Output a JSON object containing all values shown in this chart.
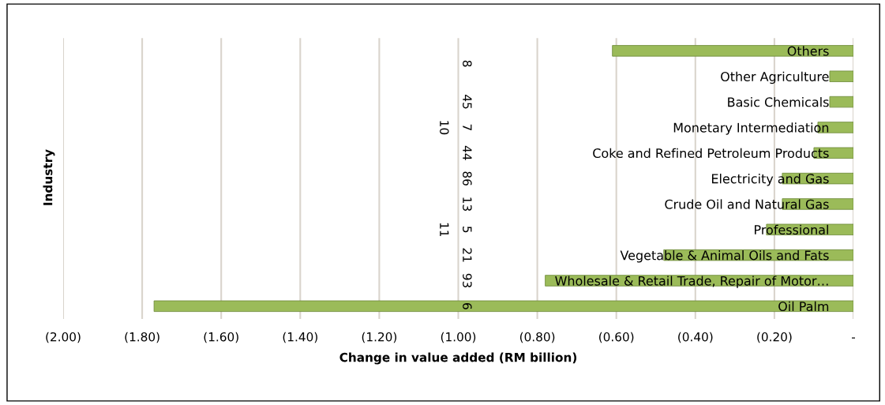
{
  "chart_data": {
    "type": "bar",
    "orientation": "horizontal",
    "xlabel": "Change in value added (RM billion)",
    "ylabel": "Industry",
    "categories": [
      "Others",
      "Other Agriculture",
      "Basic Chemicals",
      "Monetary Intermediation",
      "Coke and Refined Petroleum Products",
      "Electricity and Gas",
      "Crude Oil and Natural Gas",
      "Professional",
      "Vegetable & Animal Oils and Fats",
      "Wholesale & Retail Trade, Repair of Motor…",
      "Oil Palm"
    ],
    "values": [
      -0.61,
      -0.06,
      -0.06,
      -0.09,
      -0.1,
      -0.18,
      -0.18,
      -0.22,
      -0.48,
      -0.78,
      -1.77
    ],
    "color": "#9bbb59",
    "xlim": [
      -2.0,
      0
    ],
    "xticks": [
      {
        "value": -2.0,
        "label": "(2.00)"
      },
      {
        "value": -1.8,
        "label": "(1.80)"
      },
      {
        "value": -1.6,
        "label": "(1.60)"
      },
      {
        "value": -1.4,
        "label": "(1.40)"
      },
      {
        "value": -1.2,
        "label": "(1.20)"
      },
      {
        "value": -1.0,
        "label": "(1.00)"
      },
      {
        "value": -0.8,
        "label": "(0.80)"
      },
      {
        "value": -0.6,
        "label": "(0.60)"
      },
      {
        "value": -0.4,
        "label": "(0.40)"
      },
      {
        "value": -0.2,
        "label": "(0.20)"
      },
      {
        "value": 0,
        "label": "-"
      }
    ],
    "grid": "x",
    "legend": false,
    "annotations": [
      "8",
      "45",
      "7",
      "44",
      "86",
      "13",
      "5",
      "21",
      "93",
      "6",
      "10",
      "11"
    ]
  }
}
